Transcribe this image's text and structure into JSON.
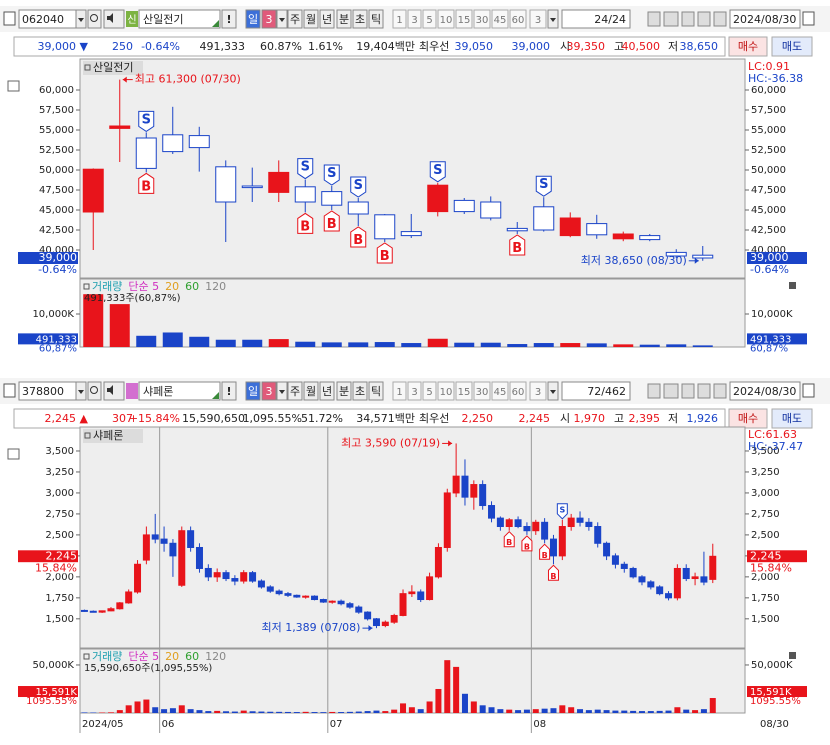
{
  "panels": [
    {
      "toolbar": {
        "code": "062040",
        "badge": "신",
        "badge_color": "#7cb342",
        "name": "산일전기",
        "alert": "!",
        "periods": [
          "일",
          "3",
          "주",
          "월",
          "년",
          "분",
          "초",
          "틱"
        ],
        "minutes": [
          "1",
          "3",
          "5",
          "10",
          "15",
          "30",
          "45",
          "60",
          "3"
        ],
        "counter": "24/24",
        "date": "2024/08/30"
      },
      "quote": [
        {
          "text": "39,000 ▼",
          "color": "#1a44c8"
        },
        {
          "text": "250",
          "color": "#1a44c8"
        },
        {
          "text": "-0.64%",
          "color": "#1a44c8"
        },
        {
          "text": "491,333",
          "color": "#222"
        },
        {
          "text": "60.87%",
          "color": "#222"
        },
        {
          "text": "1.61%",
          "color": "#222"
        },
        {
          "text": "19,404백만",
          "color": "#222"
        },
        {
          "text": "최우선",
          "color": "#222"
        },
        {
          "text": "39,050",
          "color": "#1a44c8"
        },
        {
          "text": "39,000",
          "color": "#1a44c8"
        },
        {
          "text": "시",
          "color": "#222"
        },
        {
          "text": "39,350",
          "color": "#e8141b"
        },
        {
          "text": "고",
          "color": "#222"
        },
        {
          "text": "40,500",
          "color": "#e8141b"
        },
        {
          "text": "저",
          "color": "#222"
        },
        {
          "text": "38,650",
          "color": "#1a44c8"
        }
      ],
      "buy": "매수",
      "sell": "매도"
    },
    {
      "toolbar": {
        "code": "378800",
        "badge_color": "#d36fd0",
        "name": "샤페론",
        "alert": "!",
        "periods": [
          "일",
          "3",
          "주",
          "월",
          "년",
          "분",
          "초",
          "틱"
        ],
        "minutes": [
          "1",
          "3",
          "5",
          "10",
          "15",
          "30",
          "45",
          "60",
          "3"
        ],
        "counter": "72/462",
        "date": "2024/08/30"
      },
      "quote": [
        {
          "text": "2,245 ▲",
          "color": "#e8141b"
        },
        {
          "text": "307",
          "color": "#e8141b"
        },
        {
          "text": "+15.84%",
          "color": "#e8141b"
        },
        {
          "text": "15,590,650",
          "color": "#222"
        },
        {
          "text": "1,095.55%",
          "color": "#222"
        },
        {
          "text": "51.72%",
          "color": "#222"
        },
        {
          "text": "34,571백만",
          "color": "#222"
        },
        {
          "text": "최우선",
          "color": "#222"
        },
        {
          "text": "2,250",
          "color": "#e8141b"
        },
        {
          "text": "2,245",
          "color": "#e8141b"
        },
        {
          "text": "시",
          "color": "#222"
        },
        {
          "text": "1,970",
          "color": "#e8141b"
        },
        {
          "text": "고",
          "color": "#222"
        },
        {
          "text": "2,395",
          "color": "#e8141b"
        },
        {
          "text": "저",
          "color": "#222"
        },
        {
          "text": "1,926",
          "color": "#1a44c8"
        }
      ],
      "buy": "매수",
      "sell": "매도"
    }
  ],
  "chart_data": [
    {
      "type": "candlestick",
      "name": "산일전기",
      "lc": "LC:0.91",
      "hc": "HC:-36.38",
      "high_note": "최고 61,300 (07/30)",
      "low_note": "최저 38,650 (08/30)",
      "up_color": "#e8141b",
      "down_color": "#1a44c8",
      "open": [
        44750,
        55200,
        54000,
        54400,
        54300,
        50400,
        48000,
        47200,
        47900,
        47300,
        46000,
        44400,
        42300,
        44800,
        46200,
        46000,
        42700,
        45400,
        41800,
        43300,
        41400,
        41800,
        39700,
        39350
      ],
      "high": [
        50200,
        61300,
        54700,
        57900,
        55400,
        51200,
        50300,
        51200,
        48800,
        48000,
        46500,
        44500,
        44500,
        48400,
        46500,
        46700,
        43500,
        46600,
        44700,
        44400,
        42300,
        42000,
        40100,
        40500
      ],
      "low": [
        40000,
        51000,
        49700,
        52000,
        49800,
        41000,
        46000,
        46000,
        44700,
        45000,
        43000,
        41000,
        41500,
        44200,
        44500,
        43700,
        42000,
        42300,
        41600,
        41400,
        41100,
        41100,
        39000,
        38650
      ],
      "close": [
        50100,
        55500,
        50200,
        52300,
        52800,
        46000,
        47800,
        49700,
        46000,
        45600,
        44500,
        41400,
        41800,
        48100,
        44800,
        44000,
        42400,
        42500,
        44000,
        41900,
        42000,
        41300,
        39250,
        39000
      ],
      "signals": [
        null,
        null,
        [
          "S",
          "B"
        ],
        null,
        null,
        null,
        null,
        null,
        [
          "S",
          "B"
        ],
        [
          "S",
          "B"
        ],
        [
          "S",
          "B"
        ],
        [
          "B"
        ],
        null,
        [
          "S"
        ],
        null,
        null,
        [
          "B"
        ],
        [
          "S"
        ],
        null,
        null,
        null,
        null,
        null,
        null
      ],
      "ylim": [
        37250,
        63500
      ],
      "yticks": [
        {
          "value": 40000,
          "label": "40,000"
        },
        {
          "value": 42500,
          "label": "42,500"
        },
        {
          "value": 45000,
          "label": "45,000"
        },
        {
          "value": 47500,
          "label": "47,500"
        },
        {
          "value": 50000,
          "label": "50,000"
        },
        {
          "value": 52500,
          "label": "52,500"
        },
        {
          "value": 55000,
          "label": "55,000"
        },
        {
          "value": 57500,
          "label": "57,500"
        },
        {
          "value": 60000,
          "label": "60,000"
        }
      ],
      "last_price": {
        "value": 39000,
        "label": "39,000"
      },
      "last_change": "-0.64%",
      "marker_color": "#1a44c8",
      "volume": {
        "legend": [
          "거래량",
          "단순 5",
          "20",
          "60",
          "120"
        ],
        "legend_colors": [
          "#20a0b0",
          "#d030c0",
          "#e0a020",
          "#30a030",
          "#888888"
        ],
        "summary": "491,333주(60,87%)",
        "values": [
          16000,
          13000,
          3400,
          4400,
          3100,
          2200,
          2200,
          2400,
          1600,
          1400,
          1400,
          1500,
          1200,
          2500,
          1300,
          1300,
          900,
          1200,
          1200,
          1100,
          800,
          700,
          800,
          491.333
        ],
        "ylim": [
          0,
          19700
        ],
        "yticks": [
          {
            "value": 10000,
            "label": "10,000K"
          }
        ],
        "last": {
          "value": 491.333,
          "label": "491,333"
        },
        "last_ratio": "60,87%"
      }
    },
    {
      "type": "candlestick",
      "name": "샤페론",
      "lc": "LC:61.63",
      "hc": "HC:-37.47",
      "high_note": "최고 3,590 (07/19)",
      "low_note": "최저 1,389 (07/08)",
      "up_color": "#e8141b",
      "down_color": "#1a44c8",
      "open": [
        1600,
        1590,
        1580,
        1595,
        1620,
        1690,
        1820,
        2200,
        2500,
        2450,
        2400,
        1900,
        2550,
        2350,
        2100,
        2000,
        2050,
        1980,
        1950,
        2050,
        1950,
        1880,
        1830,
        1800,
        1780,
        1760,
        1770,
        1730,
        1700,
        1710,
        1680,
        1640,
        1580,
        1500,
        1420,
        1460,
        1540,
        1800,
        1820,
        1730,
        2000,
        2350,
        3000,
        3200,
        2950,
        3100,
        2850,
        2700,
        2600,
        2680,
        2600,
        2550,
        2650,
        2450,
        2250,
        2600,
        2700,
        2650,
        2600,
        2400,
        2250,
        2150,
        2100,
        2000,
        1940,
        1880,
        1800,
        1750,
        2100,
        1980,
        2000,
        1970
      ],
      "high": [
        1610,
        1600,
        1600,
        1640,
        1700,
        1850,
        2200,
        2600,
        2750,
        2600,
        2450,
        2600,
        2600,
        2400,
        2150,
        2100,
        2080,
        2020,
        2080,
        2070,
        1970,
        1900,
        1850,
        1820,
        1790,
        1780,
        1780,
        1740,
        1720,
        1730,
        1700,
        1660,
        1590,
        1510,
        1480,
        1560,
        1850,
        1900,
        1850,
        2050,
        2400,
        3050,
        3590,
        3400,
        3150,
        3150,
        2900,
        2720,
        2700,
        2720,
        2650,
        2680,
        2700,
        2500,
        2680,
        2750,
        2780,
        2700,
        2650,
        2420,
        2280,
        2180,
        2120,
        2020,
        1960,
        1900,
        1830,
        2150,
        2150,
        2050,
        2300,
        2395
      ],
      "low": [
        1585,
        1575,
        1570,
        1590,
        1610,
        1680,
        1800,
        2150,
        2400,
        2300,
        2000,
        1880,
        2300,
        2050,
        1950,
        1940,
        1950,
        1900,
        1920,
        1930,
        1860,
        1810,
        1780,
        1760,
        1750,
        1740,
        1720,
        1690,
        1680,
        1660,
        1620,
        1560,
        1480,
        1389,
        1400,
        1440,
        1530,
        1760,
        1700,
        1720,
        1980,
        2300,
        2950,
        2850,
        2800,
        2800,
        2650,
        2550,
        2550,
        2580,
        2500,
        2500,
        2400,
        2150,
        2200,
        2550,
        2600,
        2550,
        2350,
        2200,
        2100,
        2050,
        1980,
        1900,
        1850,
        1780,
        1720,
        1720,
        1950,
        1900,
        1900,
        1926
      ],
      "close": [
        1590,
        1580,
        1595,
        1620,
        1690,
        1820,
        2150,
        2500,
        2450,
        2400,
        2250,
        2550,
        2350,
        2100,
        2000,
        2050,
        1980,
        1950,
        2050,
        1950,
        1880,
        1830,
        1800,
        1780,
        1760,
        1770,
        1730,
        1700,
        1710,
        1680,
        1640,
        1580,
        1500,
        1420,
        1460,
        1540,
        1800,
        1820,
        1730,
        2000,
        2350,
        3000,
        3200,
        2950,
        3100,
        2850,
        2700,
        2600,
        2680,
        2600,
        2550,
        2650,
        2450,
        2250,
        2600,
        2700,
        2650,
        2600,
        2400,
        2250,
        2150,
        2100,
        2000,
        1940,
        1880,
        1800,
        1750,
        2100,
        1980,
        2000,
        1938,
        2245
      ],
      "signals": [
        null,
        null,
        null,
        null,
        null,
        null,
        null,
        null,
        null,
        null,
        null,
        null,
        null,
        null,
        null,
        null,
        null,
        null,
        null,
        null,
        null,
        null,
        null,
        null,
        null,
        null,
        null,
        null,
        null,
        null,
        null,
        null,
        null,
        null,
        null,
        null,
        null,
        null,
        null,
        null,
        null,
        null,
        null,
        null,
        null,
        null,
        null,
        null,
        [
          "B"
        ],
        null,
        [
          "B"
        ],
        null,
        [
          "B"
        ],
        [
          "B"
        ],
        [
          "S"
        ],
        null,
        null,
        null,
        null,
        null,
        null,
        null,
        null,
        null,
        null,
        null,
        null,
        null,
        null,
        null,
        null,
        null
      ],
      "ylim": [
        1200,
        3750
      ],
      "yticks": [
        {
          "value": 1500,
          "label": "1,500"
        },
        {
          "value": 1750,
          "label": "1,750"
        },
        {
          "value": 2000,
          "label": "2,000"
        },
        {
          "value": 2250,
          "label": "2,250"
        },
        {
          "value": 2500,
          "label": "2,500"
        },
        {
          "value": 2750,
          "label": "2,750"
        },
        {
          "value": 3000,
          "label": "3,000"
        },
        {
          "value": 3250,
          "label": "3,250"
        },
        {
          "value": 3500,
          "label": "3,500"
        }
      ],
      "xticks": [
        {
          "value": 0,
          "label": "2024/05"
        },
        {
          "value": 9,
          "label": "06"
        },
        {
          "value": 28,
          "label": "07"
        },
        {
          "value": 51,
          "label": "08"
        }
      ],
      "last_date": "08/30",
      "last_price": {
        "value": 2245,
        "label": "2,245"
      },
      "last_change": "15.84%",
      "marker_color": "#e8141b",
      "volume": {
        "legend": [
          "거래량",
          "단순 5",
          "20",
          "60",
          "120"
        ],
        "legend_colors": [
          "#20a0b0",
          "#d030c0",
          "#e0a020",
          "#30a030",
          "#888888"
        ],
        "summary": "15,590,650주(1,095,55%)",
        "values": [
          600,
          500,
          500,
          700,
          3000,
          8000,
          12000,
          14000,
          6000,
          4000,
          5000,
          8000,
          4000,
          3000,
          2000,
          2200,
          1800,
          1500,
          2500,
          1800,
          1500,
          1300,
          1200,
          1100,
          1000,
          1200,
          1000,
          900,
          1100,
          1000,
          1200,
          1500,
          2000,
          2500,
          2000,
          3500,
          10000,
          6000,
          4000,
          12000,
          25000,
          55000,
          48000,
          20000,
          12000,
          8000,
          6000,
          4000,
          3500,
          3000,
          3500,
          4000,
          4500,
          5000,
          8000,
          6000,
          4000,
          3000,
          3500,
          3000,
          2500,
          2500,
          2200,
          2000,
          2000,
          2200,
          2500,
          6000,
          3500,
          3000,
          4000,
          15591
        ],
        "ylim": [
          0,
          63500
        ],
        "yticks": [
          {
            "value": 50000,
            "label": "50,000K"
          }
        ],
        "last": {
          "value": 15591,
          "label": "15,591K"
        },
        "last_ratio": "1095.55%"
      }
    }
  ]
}
